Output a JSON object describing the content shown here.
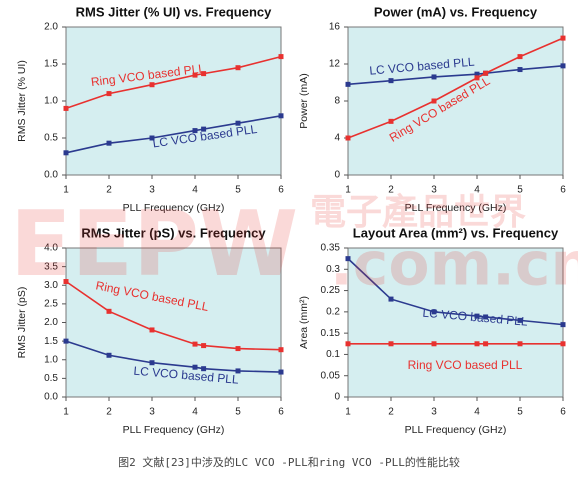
{
  "chart_data": [
    {
      "type": "line",
      "title": "RMS Jitter (% UI) vs.  Frequency",
      "x_label": "PLL Frequency (GHz)",
      "y_label": "RMS Jitter (% UI)",
      "x": [
        1,
        2,
        3,
        4,
        4.2,
        5,
        6
      ],
      "series": [
        {
          "name": "Ring VCO based PLL",
          "color": "#e8312f",
          "values": [
            0.9,
            1.1,
            1.22,
            1.35,
            1.37,
            1.45,
            1.6
          ]
        },
        {
          "name": "LC VCO based PLL",
          "color": "#2b3a8f",
          "values": [
            0.3,
            0.43,
            0.5,
            0.6,
            0.62,
            0.7,
            0.8
          ]
        }
      ],
      "xlim": [
        1,
        6
      ],
      "xticks": [
        1,
        2,
        3,
        4,
        5,
        6
      ],
      "ylim": [
        0,
        2
      ],
      "yticks": [
        {
          "value": 0,
          "label": "0.0"
        },
        {
          "value": 0.5,
          "label": "0.5"
        },
        {
          "value": 1,
          "label": "1.0"
        },
        {
          "value": 1.5,
          "label": "1.5"
        },
        {
          "value": 2,
          "label": "2.0"
        }
      ]
    },
    {
      "type": "line",
      "title": "Power (mA) vs.  Frequency",
      "x_label": "PLL Frequency (GHz)",
      "y_label": "Power (mA)",
      "x": [
        1,
        2,
        3,
        4,
        4.2,
        5,
        6
      ],
      "series": [
        {
          "name": "LC VCO based PLL",
          "color": "#2b3a8f",
          "values": [
            9.8,
            10.2,
            10.6,
            10.9,
            11.0,
            11.4,
            11.8
          ]
        },
        {
          "name": "Ring VCO based PLL",
          "color": "#e8312f",
          "values": [
            4.0,
            5.8,
            8.0,
            10.5,
            11.0,
            12.8,
            14.8
          ]
        }
      ],
      "xlim": [
        1,
        6
      ],
      "xticks": [
        1,
        2,
        3,
        4,
        5,
        6
      ],
      "ylim": [
        0,
        16
      ],
      "yticks": [
        0,
        4,
        8,
        12,
        16
      ]
    },
    {
      "type": "line",
      "title": "RMS Jitter (pS) vs.  Frequency",
      "x_label": "PLL Frequency (GHz)",
      "y_label": "RMS Jitter (pS)",
      "x": [
        1,
        2,
        3,
        4,
        4.2,
        5,
        6
      ],
      "series": [
        {
          "name": "Ring VCO based PLL",
          "color": "#e8312f",
          "values": [
            3.1,
            2.3,
            1.8,
            1.42,
            1.38,
            1.3,
            1.27
          ]
        },
        {
          "name": "LC VCO based PLL",
          "color": "#2b3a8f",
          "values": [
            1.5,
            1.12,
            0.92,
            0.8,
            0.76,
            0.7,
            0.67
          ]
        }
      ],
      "xlim": [
        1,
        6
      ],
      "xticks": [
        1,
        2,
        3,
        4,
        5,
        6
      ],
      "ylim": [
        0,
        4
      ],
      "yticks": [
        {
          "value": 0,
          "label": "0.0"
        },
        {
          "value": 0.5,
          "label": "0.5"
        },
        {
          "value": 1,
          "label": "1.0"
        },
        {
          "value": 1.5,
          "label": "1.5"
        },
        {
          "value": 2,
          "label": "2.0"
        },
        {
          "value": 2.5,
          "label": "2.5"
        },
        {
          "value": 3,
          "label": "3.0"
        },
        {
          "value": 3.5,
          "label": "3.5"
        },
        {
          "value": 4,
          "label": "4.0"
        }
      ]
    },
    {
      "type": "line",
      "title": "Layout Area (mm²) vs.  Frequency",
      "x_label": "PLL Frequency (GHz)",
      "y_label": "Area (mm²)",
      "x": [
        1,
        2,
        3,
        4,
        4.2,
        5,
        6
      ],
      "series": [
        {
          "name": "LC VCO based PLL",
          "color": "#2b3a8f",
          "values": [
            0.325,
            0.23,
            0.2,
            0.19,
            0.188,
            0.18,
            0.17
          ]
        },
        {
          "name": "Ring VCO based PLL",
          "color": "#e8312f",
          "values": [
            0.125,
            0.125,
            0.125,
            0.125,
            0.125,
            0.125,
            0.125
          ]
        }
      ],
      "xlim": [
        1,
        6
      ],
      "xticks": [
        1,
        2,
        3,
        4,
        5,
        6
      ],
      "ylim": [
        0,
        0.35
      ],
      "yticks": [
        0,
        0.05,
        0.1,
        0.15,
        0.2,
        0.25,
        0.3,
        0.35
      ]
    }
  ],
  "watermark": {
    "logo": "EEPW",
    "name": "電子產品世界",
    "domain": ".com.cn"
  },
  "caption": "图2 文献[23]中涉及的LC VCO -PLL和ring VCO -PLL的性能比较"
}
